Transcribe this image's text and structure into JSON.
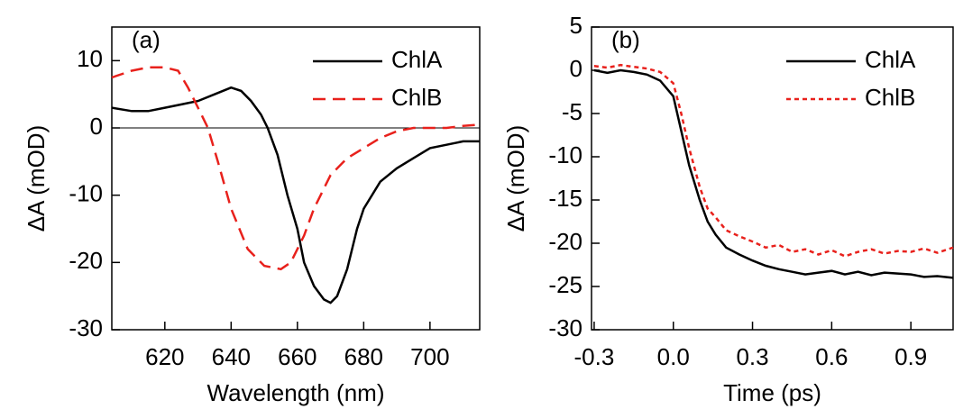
{
  "chart_data": [
    {
      "type": "line",
      "annotation": "(a)",
      "xlabel": "Wavelength (nm)",
      "ylabel": "ΔA (mOD)",
      "xlim": [
        604,
        715
      ],
      "ylim": [
        -30,
        15
      ],
      "xticks": [
        620,
        640,
        660,
        680,
        700
      ],
      "yticks": [
        -30,
        -20,
        -10,
        0,
        10
      ],
      "hline": 0,
      "legend": "upper right",
      "series": [
        {
          "name": "ChlA",
          "color": "#000000",
          "line_style": "solid",
          "x": [
            604,
            610,
            615,
            620,
            625,
            630,
            635,
            640,
            643,
            646,
            649,
            651,
            654,
            657,
            660,
            662,
            665,
            668,
            670,
            672,
            675,
            678,
            680,
            685,
            690,
            695,
            700,
            705,
            710,
            715
          ],
          "values": [
            3,
            2.5,
            2.5,
            3,
            3.5,
            4,
            5,
            6,
            5.5,
            4,
            2,
            0,
            -4,
            -10,
            -15,
            -20,
            -23.5,
            -25.5,
            -26,
            -25,
            -21,
            -15,
            -12,
            -8,
            -6,
            -4.5,
            -3,
            -2.5,
            -2,
            -2
          ]
        },
        {
          "name": "ChlB",
          "color": "#e8211c",
          "line_style": "dashed",
          "x": [
            604,
            610,
            615,
            620,
            624,
            627,
            630,
            633,
            636,
            640,
            645,
            650,
            655,
            658,
            662,
            665,
            670,
            675,
            680,
            685,
            690,
            695,
            700,
            705,
            710,
            715
          ],
          "values": [
            7.5,
            8.5,
            9,
            9,
            8.5,
            6,
            3,
            0,
            -5,
            -12,
            -18,
            -20.5,
            -21,
            -20,
            -16,
            -12,
            -7,
            -4.5,
            -3,
            -1.5,
            -0.5,
            0,
            0,
            0,
            0.3,
            0.5
          ]
        }
      ]
    },
    {
      "type": "line",
      "annotation": "(b)",
      "xlabel": "Time (ps)",
      "ylabel": "ΔA (mOD)",
      "xlim": [
        -0.31,
        1.06
      ],
      "ylim": [
        -30,
        5
      ],
      "xticks": [
        -0.3,
        {
          "value": 0,
          "label": "0.0"
        },
        0.3,
        0.6,
        0.9
      ],
      "yticks": [
        -30,
        -25,
        -20,
        -15,
        -10,
        -5,
        0,
        5
      ],
      "legend": "upper right",
      "series": [
        {
          "name": "ChlA",
          "color": "#000000",
          "line_style": "solid",
          "x": [
            -0.3,
            -0.25,
            -0.2,
            -0.15,
            -0.1,
            -0.05,
            0,
            0.03,
            0.06,
            0.1,
            0.13,
            0.16,
            0.2,
            0.25,
            0.3,
            0.35,
            0.4,
            0.45,
            0.5,
            0.55,
            0.6,
            0.65,
            0.7,
            0.75,
            0.8,
            0.85,
            0.9,
            0.95,
            1.0,
            1.06
          ],
          "values": [
            0,
            -0.3,
            0,
            -0.2,
            -0.5,
            -1.2,
            -3,
            -7,
            -11,
            -15,
            -17.5,
            -19,
            -20.5,
            -21.3,
            -22,
            -22.6,
            -23,
            -23.3,
            -23.6,
            -23.4,
            -23.2,
            -23.6,
            -23.3,
            -23.7,
            -23.4,
            -23.5,
            -23.6,
            -23.9,
            -23.8,
            -24
          ]
        },
        {
          "name": "ChlB",
          "color": "#e8211c",
          "line_style": "dotted",
          "x": [
            -0.3,
            -0.25,
            -0.2,
            -0.15,
            -0.1,
            -0.05,
            0,
            0.03,
            0.06,
            0.1,
            0.13,
            0.16,
            0.2,
            0.25,
            0.3,
            0.35,
            0.4,
            0.45,
            0.5,
            0.55,
            0.6,
            0.65,
            0.7,
            0.75,
            0.8,
            0.85,
            0.9,
            0.95,
            1.0,
            1.06
          ],
          "values": [
            0.5,
            0.3,
            0.6,
            0.4,
            0.2,
            -0.2,
            -1.5,
            -5,
            -9,
            -13.5,
            -16,
            -17,
            -18.5,
            -19.2,
            -19.8,
            -20.5,
            -20.2,
            -21,
            -20.7,
            -21.3,
            -20.8,
            -21.5,
            -21,
            -20.7,
            -21.2,
            -20.9,
            -21,
            -20.6,
            -21.1,
            -20.5
          ]
        }
      ]
    }
  ]
}
